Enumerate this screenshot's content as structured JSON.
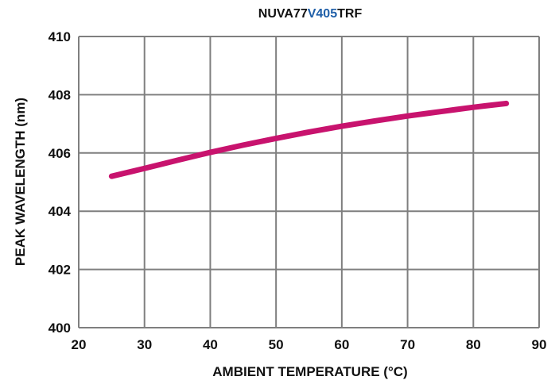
{
  "chart_data": {
    "type": "line",
    "title": {
      "part1": "NUVA77",
      "part2": "V405",
      "part3": "TRF"
    },
    "title_colors": {
      "normal": "#111111",
      "highlight": "#1f5fa8"
    },
    "xlabel": "AMBIENT TEMPERATURE (°C)",
    "ylabel": "PEAK WAVELENGTH (nm)",
    "xlim": [
      20,
      90
    ],
    "ylim": [
      400,
      410
    ],
    "x_ticks": [
      20,
      30,
      40,
      50,
      60,
      70,
      80,
      90
    ],
    "y_ticks": [
      400,
      402,
      404,
      406,
      408,
      410
    ],
    "grid": true,
    "line_color": "#c8136e",
    "grid_color": "#7f7f7f",
    "series": [
      {
        "x": [
          25,
          30,
          35,
          40,
          45,
          50,
          55,
          60,
          65,
          70,
          75,
          80,
          85
        ],
        "values": [
          405.2,
          405.47,
          405.75,
          406.02,
          406.27,
          406.5,
          406.72,
          406.92,
          407.1,
          407.27,
          407.42,
          407.57,
          407.7
        ]
      }
    ]
  }
}
